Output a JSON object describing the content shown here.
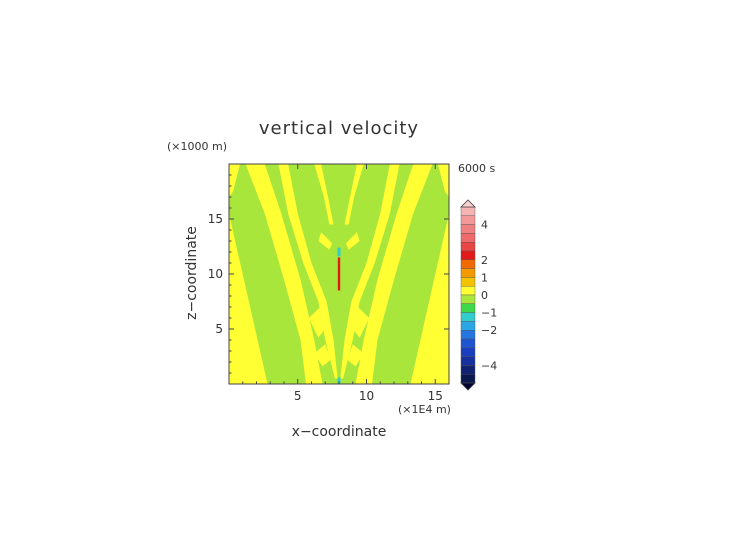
{
  "chart_data": {
    "type": "heatmap",
    "title": "vertical velocity",
    "xlabel": "x−coordinate",
    "ylabel": "z−coordinate",
    "x_unit": "(×1E4 m)",
    "y_unit": "(×1000 m)",
    "time_label": "6000 s",
    "xlim": [
      0,
      16
    ],
    "ylim": [
      0,
      20
    ],
    "xticks": [
      5,
      10,
      15
    ],
    "yticks": [
      5,
      10,
      15
    ],
    "grid": false,
    "colorbar": {
      "min": -5,
      "max": 5,
      "tick_labels": [
        4,
        2,
        1,
        0,
        -1,
        -2,
        -4
      ],
      "bands": [
        {
          "from": 4.5,
          "to": 5,
          "color": "#f5b3b3"
        },
        {
          "from": 4,
          "to": 4.5,
          "color": "#f39999"
        },
        {
          "from": 3.5,
          "to": 4,
          "color": "#f08080"
        },
        {
          "from": 3,
          "to": 3.5,
          "color": "#ee6a6a"
        },
        {
          "from": 2.5,
          "to": 3,
          "color": "#ea4545"
        },
        {
          "from": 2,
          "to": 2.5,
          "color": "#e31a1a"
        },
        {
          "from": 1.5,
          "to": 2,
          "color": "#f06a00"
        },
        {
          "from": 1,
          "to": 1.5,
          "color": "#f49a00"
        },
        {
          "from": 0.5,
          "to": 1,
          "color": "#f5c200"
        },
        {
          "from": 0,
          "to": 0.5,
          "color": "#ffff33"
        },
        {
          "from": -0.5,
          "to": 0,
          "color": "#a8e63c"
        },
        {
          "from": -1,
          "to": -0.5,
          "color": "#3fd84c"
        },
        {
          "from": -1.5,
          "to": -1,
          "color": "#33cccc"
        },
        {
          "from": -2,
          "to": -1.5,
          "color": "#2aa6e6"
        },
        {
          "from": -2.5,
          "to": -2,
          "color": "#2477e0"
        },
        {
          "from": -3,
          "to": -2.5,
          "color": "#1e55d0"
        },
        {
          "from": -3.5,
          "to": -3,
          "color": "#1a3fbe"
        },
        {
          "from": -4,
          "to": -3.5,
          "color": "#16309e"
        },
        {
          "from": -4.5,
          "to": -4,
          "color": "#102270"
        },
        {
          "from": -5,
          "to": -4.5,
          "color": "#0a1850"
        }
      ],
      "over_color": "#f8d0d0",
      "under_color": "#000033"
    },
    "field_colors": {
      "background": "#a8e63c",
      "positive": "#ffff33",
      "updraft_core": "#e31a1a",
      "downdraft_core": "#33cccc"
    },
    "field_regions": {
      "positive_lobes": [
        {
          "kind": "wedge",
          "apex": [
            0,
            15.5
          ],
          "base": [
            [
              0,
              0
            ],
            [
              2.8,
              0
            ]
          ]
        },
        {
          "kind": "band",
          "points": [
            [
              1.2,
              20
            ],
            [
              2.6,
              15.5
            ],
            [
              4,
              9.5
            ],
            [
              5.2,
              4
            ],
            [
              5.6,
              0
            ],
            [
              6.8,
              0
            ],
            [
              6.2,
              4
            ],
            [
              5.2,
              9.5
            ],
            [
              3.8,
              15.5
            ],
            [
              2.6,
              20
            ]
          ]
        },
        {
          "kind": "band",
          "points": [
            [
              4.3,
              20
            ],
            [
              5,
              15.5
            ],
            [
              6,
              11
            ],
            [
              7.1,
              7.5
            ],
            [
              7.6,
              4
            ],
            [
              7.9,
              0.5
            ],
            [
              7.7,
              0.5
            ],
            [
              7,
              4
            ],
            [
              6.5,
              7.5
            ],
            [
              5.4,
              11
            ],
            [
              4.3,
              15.5
            ],
            [
              3.6,
              20
            ]
          ]
        },
        {
          "kind": "band",
          "points": [
            [
              11.7,
              20
            ],
            [
              11,
              15.5
            ],
            [
              10,
              11
            ],
            [
              8.9,
              7.5
            ],
            [
              8.4,
              4
            ],
            [
              8.1,
              0.5
            ],
            [
              8.3,
              0.5
            ],
            [
              9,
              4
            ],
            [
              9.5,
              7.5
            ],
            [
              10.6,
              11
            ],
            [
              11.7,
              15.5
            ],
            [
              12.4,
              20
            ]
          ]
        },
        {
          "kind": "band",
          "points": [
            [
              14.8,
              20
            ],
            [
              13.4,
              15.5
            ],
            [
              12,
              9.5
            ],
            [
              10.8,
              4
            ],
            [
              10.4,
              0
            ],
            [
              9.2,
              0
            ],
            [
              9.8,
              4
            ],
            [
              10.8,
              9.5
            ],
            [
              12.2,
              15.5
            ],
            [
              13.4,
              20
            ]
          ]
        },
        {
          "kind": "wedge",
          "apex": [
            16,
            15.5
          ],
          "base": [
            [
              16,
              0
            ],
            [
              13.2,
              0
            ]
          ]
        },
        {
          "kind": "band",
          "points": [
            [
              0,
              20
            ],
            [
              0.8,
              20
            ],
            [
              0.3,
              17.5
            ],
            [
              0,
              17
            ]
          ]
        },
        {
          "kind": "band",
          "points": [
            [
              16,
              20
            ],
            [
              15.2,
              20
            ],
            [
              15.7,
              17.5
            ],
            [
              16,
              17
            ]
          ]
        },
        {
          "kind": "band",
          "points": [
            [
              6.7,
              20
            ],
            [
              7.2,
              17
            ],
            [
              7.6,
              14.5
            ],
            [
              7.3,
              14.5
            ],
            [
              6.9,
              17
            ],
            [
              6.2,
              20
            ]
          ]
        },
        {
          "kind": "band",
          "points": [
            [
              9.3,
              20
            ],
            [
              8.8,
              17
            ],
            [
              8.4,
              14.5
            ],
            [
              8.7,
              14.5
            ],
            [
              9.1,
              17
            ],
            [
              9.8,
              20
            ]
          ]
        },
        {
          "kind": "band",
          "points": [
            [
              7.5,
              12.8
            ],
            [
              6.7,
              13.8
            ],
            [
              6.5,
              13
            ],
            [
              7.3,
              12.2
            ]
          ]
        },
        {
          "kind": "band",
          "points": [
            [
              8.5,
              12.8
            ],
            [
              9.3,
              13.8
            ],
            [
              9.5,
              13
            ],
            [
              8.7,
              12.2
            ]
          ]
        },
        {
          "kind": "band",
          "points": [
            [
              5.8,
              6
            ],
            [
              6.8,
              7.2
            ],
            [
              7.3,
              5.5
            ],
            [
              6.5,
              4.2
            ]
          ]
        },
        {
          "kind": "band",
          "points": [
            [
              10.2,
              6
            ],
            [
              9.2,
              7.2
            ],
            [
              8.7,
              5.5
            ],
            [
              9.5,
              4.2
            ]
          ]
        },
        {
          "kind": "band",
          "points": [
            [
              6.2,
              2.8
            ],
            [
              7,
              3.6
            ],
            [
              7.4,
              2.2
            ],
            [
              6.8,
              1.6
            ]
          ]
        },
        {
          "kind": "band",
          "points": [
            [
              9.8,
              2.8
            ],
            [
              9,
              3.6
            ],
            [
              8.6,
              2.2
            ],
            [
              9.2,
              1.6
            ]
          ]
        }
      ],
      "updraft_core": {
        "x": 8.0,
        "z_from": 8.5,
        "z_to": 11.5
      },
      "downdraft_core": [
        {
          "x": 8.0,
          "z_from": 11.6,
          "z_to": 12.4
        },
        {
          "x": 8.0,
          "z_from": 0,
          "z_to": 0.6
        }
      ]
    }
  }
}
